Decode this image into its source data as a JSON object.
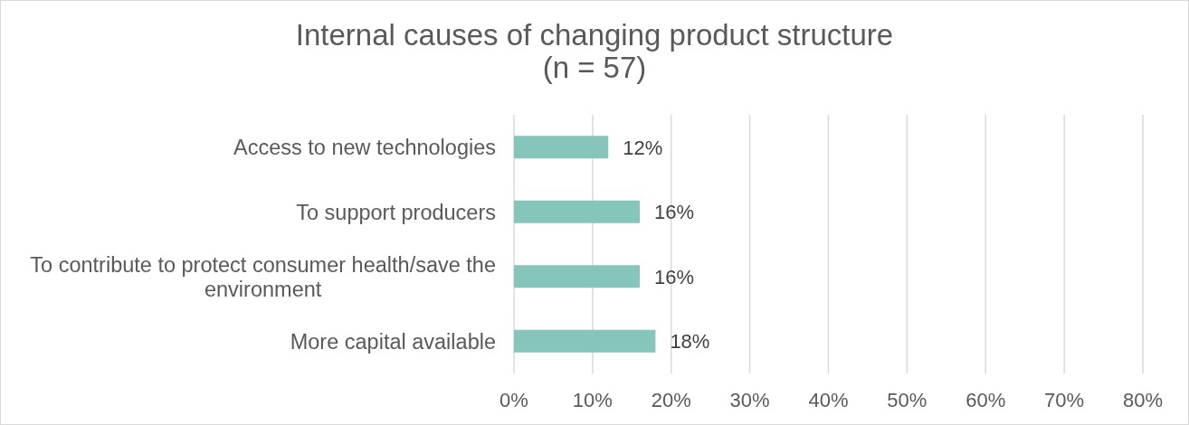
{
  "chart_data": {
    "type": "bar",
    "orientation": "horizontal",
    "title": "Internal causes of changing product structure",
    "subtitle": "(n = 57)",
    "categories": [
      "Access to new technologies",
      "To support producers",
      "To contribute to protect consumer health/save the environment",
      "More capital available"
    ],
    "values": [
      12,
      16,
      16,
      18
    ],
    "value_labels": [
      "12%",
      "16%",
      "16%",
      "18%"
    ],
    "color": "#86c5b9",
    "xlim": [
      0,
      80
    ],
    "xticks": [
      {
        "value": 0,
        "label": "0%"
      },
      {
        "value": 10,
        "label": "10%"
      },
      {
        "value": 20,
        "label": "20%"
      },
      {
        "value": 30,
        "label": "30%"
      },
      {
        "value": 40,
        "label": "40%"
      },
      {
        "value": 50,
        "label": "50%"
      },
      {
        "value": 60,
        "label": "60%"
      },
      {
        "value": 70,
        "label": "70%"
      },
      {
        "value": 80,
        "label": "80%"
      }
    ],
    "grid": "x"
  }
}
